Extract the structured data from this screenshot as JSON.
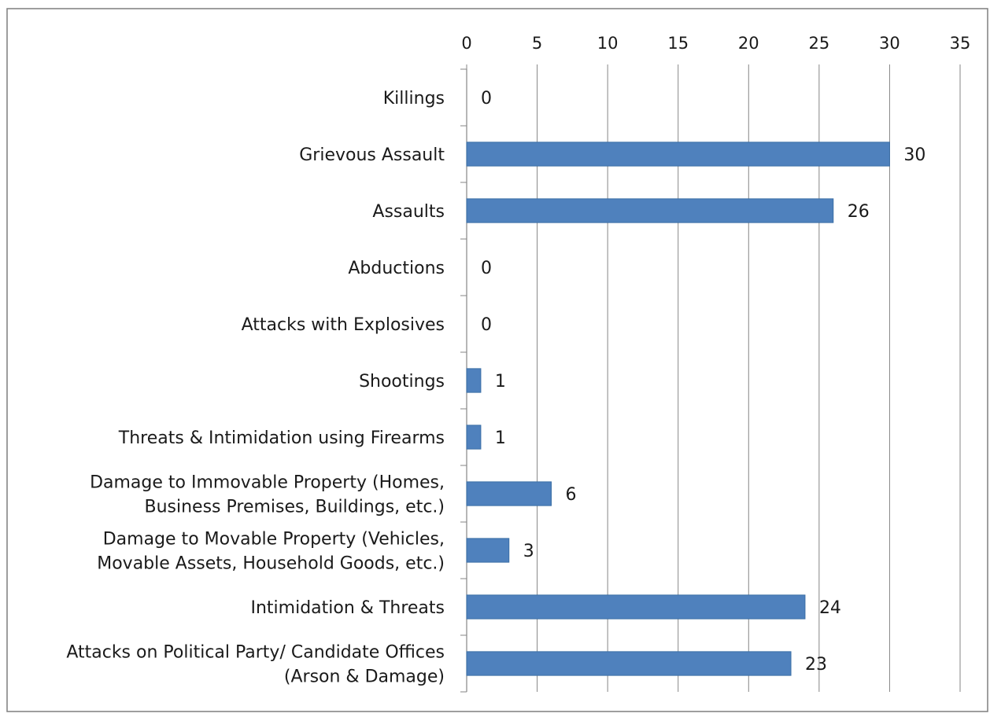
{
  "chart_data": {
    "type": "bar",
    "orientation": "horizontal",
    "categories": [
      [
        "Killings"
      ],
      [
        "Grievous Assault"
      ],
      [
        "Assaults"
      ],
      [
        "Abductions"
      ],
      [
        "Attacks with Explosives"
      ],
      [
        "Shootings"
      ],
      [
        "Threats & Intimidation using Firearms"
      ],
      [
        "Damage to Immovable Property (Homes,",
        "Business Premises, Buildings, etc.)"
      ],
      [
        "Damage to Movable Property (Vehicles,",
        "Movable Assets, Household Goods, etc.)"
      ],
      [
        "Intimidation & Threats"
      ],
      [
        "Attacks on Political Party/ Candidate Offices",
        "(Arson & Damage)"
      ]
    ],
    "values": [
      0,
      30,
      26,
      0,
      0,
      1,
      1,
      6,
      3,
      24,
      23
    ],
    "data_labels": [
      "0",
      "30",
      "26",
      "0",
      "0",
      "1",
      "1",
      "6",
      "3",
      "24",
      "23"
    ],
    "xlim": [
      0,
      35
    ],
    "x_ticks": [
      "0",
      "5",
      "10",
      "15",
      "20",
      "25",
      "30",
      "35"
    ],
    "x_axis_position": "top",
    "grid": "vertical major gridlines",
    "legend": "none",
    "title": "",
    "xlabel": "",
    "ylabel": "",
    "colors": {
      "bar": "#4f81bd",
      "bar_border": "#3a6ea5",
      "grid": "#868686",
      "axis": "#868686",
      "frame": "#7f7f7f"
    }
  }
}
